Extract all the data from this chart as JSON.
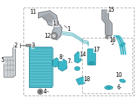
{
  "bg_color": "#ffffff",
  "teal": "#3ab8c8",
  "dark_teal": "#1a7a8a",
  "mid_teal": "#2aa0b0",
  "gray_part": "#b0b8c0",
  "dark_gray": "#606060",
  "mid_gray": "#909090",
  "light_gray": "#d0d4d8",
  "border_dash": "#aaaaaa",
  "label_fs": 5.5,
  "lw_part": 0.6,
  "lw_border": 0.7
}
